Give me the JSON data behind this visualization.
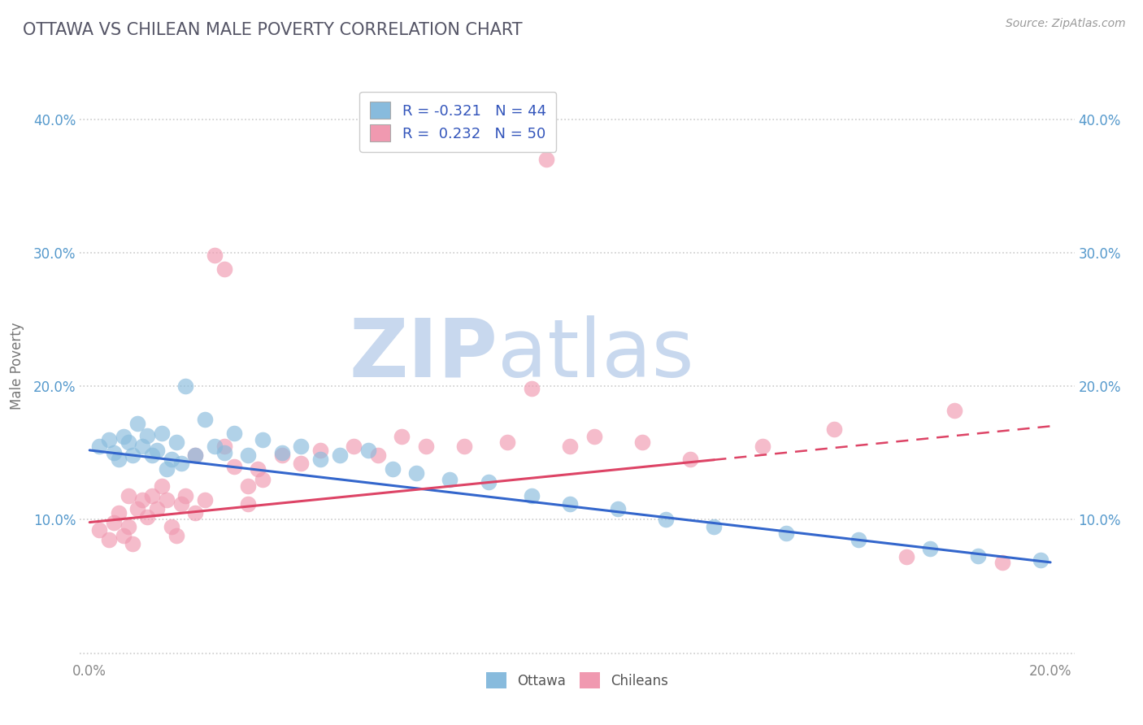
{
  "title": "OTTAWA VS CHILEAN MALE POVERTY CORRELATION CHART",
  "source_text": "Source: ZipAtlas.com",
  "ylabel": "Male Poverty",
  "xlim": [
    -0.002,
    0.205
  ],
  "ylim": [
    -0.005,
    0.435
  ],
  "xticks": [
    0.0,
    0.05,
    0.1,
    0.15,
    0.2
  ],
  "xticklabels": [
    "0.0%",
    "",
    "",
    "",
    "20.0%"
  ],
  "yticks": [
    0.0,
    0.1,
    0.2,
    0.3,
    0.4
  ],
  "yticklabels": [
    "",
    "10.0%",
    "20.0%",
    "30.0%",
    "40.0%"
  ],
  "legend_line1": "R = -0.321   N = 44",
  "legend_line2": "R =  0.232   N = 50",
  "ottawa_color": "#88bbdd",
  "chilean_color": "#f099b0",
  "ottawa_line_color": "#3366cc",
  "chilean_line_color": "#dd4466",
  "watermark_zip": "ZIP",
  "watermark_atlas": "atlas",
  "watermark_color_zip": "#c8d8ee",
  "watermark_color_atlas": "#c8d8ee",
  "title_color": "#555566",
  "title_fontsize": 15,
  "grid_color": "#cccccc",
  "background_color": "#ffffff",
  "yticklabel_color": "#5599cc",
  "xticklabel_color": "#888888",
  "ottawa_line_y0": 0.152,
  "ottawa_line_y1": 0.068,
  "chilean_line_y0": 0.098,
  "chilean_line_y1": 0.17,
  "chilean_line_solid_end": 0.13,
  "ottawa_x": [
    0.002,
    0.004,
    0.005,
    0.006,
    0.007,
    0.008,
    0.009,
    0.01,
    0.011,
    0.012,
    0.013,
    0.014,
    0.015,
    0.016,
    0.017,
    0.018,
    0.019,
    0.02,
    0.022,
    0.024,
    0.026,
    0.028,
    0.03,
    0.033,
    0.036,
    0.04,
    0.044,
    0.048,
    0.052,
    0.058,
    0.063,
    0.068,
    0.075,
    0.083,
    0.092,
    0.1,
    0.11,
    0.12,
    0.13,
    0.145,
    0.16,
    0.175,
    0.185,
    0.198
  ],
  "ottawa_y": [
    0.155,
    0.16,
    0.15,
    0.145,
    0.162,
    0.158,
    0.148,
    0.172,
    0.155,
    0.163,
    0.148,
    0.152,
    0.165,
    0.138,
    0.145,
    0.158,
    0.142,
    0.2,
    0.148,
    0.175,
    0.155,
    0.15,
    0.165,
    0.148,
    0.16,
    0.15,
    0.155,
    0.145,
    0.148,
    0.152,
    0.138,
    0.135,
    0.13,
    0.128,
    0.118,
    0.112,
    0.108,
    0.1,
    0.095,
    0.09,
    0.085,
    0.078,
    0.073,
    0.07
  ],
  "chilean_x": [
    0.002,
    0.004,
    0.005,
    0.006,
    0.007,
    0.008,
    0.009,
    0.01,
    0.011,
    0.012,
    0.013,
    0.014,
    0.015,
    0.016,
    0.017,
    0.018,
    0.019,
    0.02,
    0.022,
    0.024,
    0.026,
    0.028,
    0.03,
    0.033,
    0.036,
    0.04,
    0.044,
    0.048,
    0.055,
    0.06,
    0.065,
    0.07,
    0.078,
    0.087,
    0.095,
    0.105,
    0.115,
    0.125,
    0.14,
    0.155,
    0.17,
    0.18,
    0.19,
    0.092,
    0.1,
    0.028,
    0.035,
    0.033,
    0.022,
    0.008
  ],
  "chilean_y": [
    0.092,
    0.085,
    0.098,
    0.105,
    0.088,
    0.095,
    0.082,
    0.108,
    0.115,
    0.102,
    0.118,
    0.108,
    0.125,
    0.115,
    0.095,
    0.088,
    0.112,
    0.118,
    0.105,
    0.115,
    0.298,
    0.288,
    0.14,
    0.125,
    0.13,
    0.148,
    0.142,
    0.152,
    0.155,
    0.148,
    0.162,
    0.155,
    0.155,
    0.158,
    0.37,
    0.162,
    0.158,
    0.145,
    0.155,
    0.168,
    0.072,
    0.182,
    0.068,
    0.198,
    0.155,
    0.155,
    0.138,
    0.112,
    0.148,
    0.118
  ]
}
